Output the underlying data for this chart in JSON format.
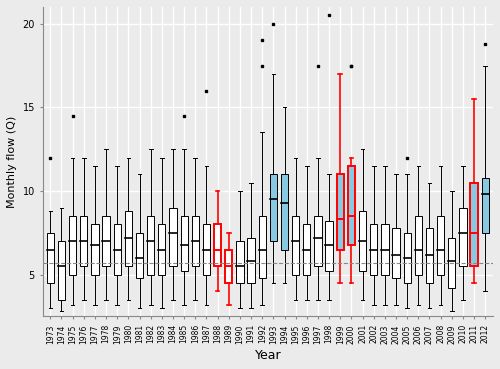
{
  "years": [
    1973,
    1974,
    1975,
    1976,
    1977,
    1978,
    1979,
    1980,
    1981,
    1982,
    1983,
    1984,
    1985,
    1986,
    1987,
    1988,
    1989,
    1990,
    1991,
    1992,
    1993,
    1994,
    1995,
    1996,
    1997,
    1998,
    1999,
    2000,
    2001,
    2002,
    2003,
    2004,
    2005,
    2006,
    2007,
    2008,
    2009,
    2010,
    2011,
    2012
  ],
  "red_years": [
    1988,
    1989,
    1999,
    2000,
    2011
  ],
  "blue_years": [
    1993,
    1994,
    1999,
    2000,
    2011,
    2012
  ],
  "mean_flow": 5.7,
  "ylabel": "Monthly flow (Q)",
  "xlabel": "Year",
  "bg_color": "#EBEBEB",
  "grid_color": "#FFFFFF",
  "box_color_normal": "#FFFFFF",
  "box_color_blue": "#88C8E0",
  "box_edge_red": "#FF0000",
  "box_edge_normal": "#000000",
  "median_color": "#000000",
  "whisker_color": "#000000",
  "flier_color": "#000000",
  "dashed_line_color": "#888888",
  "ylim": [
    2.5,
    21.0
  ],
  "yticks": [
    5,
    10,
    15,
    20
  ],
  "box_stats": {
    "1973": {
      "q1": 4.5,
      "med": 6.5,
      "q3": 7.5,
      "wlo": 3.0,
      "whi": 8.8,
      "fliers": [
        12.0
      ]
    },
    "1974": {
      "q1": 3.5,
      "med": 5.5,
      "q3": 7.0,
      "wlo": 2.8,
      "whi": 9.0,
      "fliers": []
    },
    "1975": {
      "q1": 5.0,
      "med": 7.0,
      "q3": 8.5,
      "wlo": 3.2,
      "whi": 12.0,
      "fliers": [
        14.5
      ]
    },
    "1976": {
      "q1": 5.5,
      "med": 7.0,
      "q3": 8.5,
      "wlo": 3.5,
      "whi": 12.0,
      "fliers": []
    },
    "1977": {
      "q1": 5.0,
      "med": 6.8,
      "q3": 8.0,
      "wlo": 3.2,
      "whi": 11.5,
      "fliers": []
    },
    "1978": {
      "q1": 5.5,
      "med": 7.0,
      "q3": 8.5,
      "wlo": 3.5,
      "whi": 12.5,
      "fliers": []
    },
    "1979": {
      "q1": 5.0,
      "med": 6.5,
      "q3": 8.0,
      "wlo": 3.2,
      "whi": 11.5,
      "fliers": []
    },
    "1980": {
      "q1": 5.5,
      "med": 7.2,
      "q3": 8.8,
      "wlo": 3.5,
      "whi": 12.0,
      "fliers": []
    },
    "1981": {
      "q1": 4.8,
      "med": 6.0,
      "q3": 7.5,
      "wlo": 3.0,
      "whi": 11.0,
      "fliers": []
    },
    "1982": {
      "q1": 5.0,
      "med": 7.0,
      "q3": 8.5,
      "wlo": 3.2,
      "whi": 12.5,
      "fliers": []
    },
    "1983": {
      "q1": 5.0,
      "med": 6.5,
      "q3": 8.0,
      "wlo": 3.0,
      "whi": 12.0,
      "fliers": []
    },
    "1984": {
      "q1": 5.5,
      "med": 7.5,
      "q3": 9.0,
      "wlo": 3.5,
      "whi": 12.5,
      "fliers": []
    },
    "1985": {
      "q1": 5.2,
      "med": 6.8,
      "q3": 8.5,
      "wlo": 3.2,
      "whi": 12.5,
      "fliers": [
        14.5
      ]
    },
    "1986": {
      "q1": 5.5,
      "med": 7.0,
      "q3": 8.5,
      "wlo": 3.5,
      "whi": 12.0,
      "fliers": []
    },
    "1987": {
      "q1": 5.0,
      "med": 6.5,
      "q3": 8.0,
      "wlo": 3.2,
      "whi": 11.5,
      "fliers": [
        16.0
      ]
    },
    "1988": {
      "q1": 5.5,
      "med": 6.5,
      "q3": 8.0,
      "wlo": 4.0,
      "whi": 10.0,
      "fliers": []
    },
    "1989": {
      "q1": 4.5,
      "med": 5.5,
      "q3": 6.5,
      "wlo": 3.2,
      "whi": 7.5,
      "fliers": []
    },
    "1990": {
      "q1": 4.5,
      "med": 5.5,
      "q3": 7.0,
      "wlo": 3.0,
      "whi": 10.0,
      "fliers": []
    },
    "1991": {
      "q1": 4.5,
      "med": 5.8,
      "q3": 7.2,
      "wlo": 3.0,
      "whi": 10.5,
      "fliers": []
    },
    "1992": {
      "q1": 4.8,
      "med": 6.5,
      "q3": 8.5,
      "wlo": 3.2,
      "whi": 13.5,
      "fliers": [
        17.5,
        19.0
      ]
    },
    "1993": {
      "q1": 7.0,
      "med": 9.5,
      "q3": 11.0,
      "wlo": 4.5,
      "whi": 17.0,
      "fliers": [
        20.0
      ]
    },
    "1994": {
      "q1": 6.5,
      "med": 9.3,
      "q3": 11.0,
      "wlo": 4.5,
      "whi": 15.0,
      "fliers": []
    },
    "1995": {
      "q1": 5.0,
      "med": 7.0,
      "q3": 8.5,
      "wlo": 3.5,
      "whi": 12.0,
      "fliers": []
    },
    "1996": {
      "q1": 5.0,
      "med": 6.5,
      "q3": 8.0,
      "wlo": 3.5,
      "whi": 11.5,
      "fliers": []
    },
    "1997": {
      "q1": 5.5,
      "med": 7.2,
      "q3": 8.5,
      "wlo": 3.5,
      "whi": 12.0,
      "fliers": [
        17.5
      ]
    },
    "1998": {
      "q1": 5.2,
      "med": 6.8,
      "q3": 8.2,
      "wlo": 3.5,
      "whi": 11.0,
      "fliers": [
        20.5
      ]
    },
    "1999": {
      "q1": 6.5,
      "med": 8.3,
      "q3": 11.0,
      "wlo": 4.5,
      "whi": 17.0,
      "fliers": []
    },
    "2000": {
      "q1": 6.8,
      "med": 8.5,
      "q3": 11.5,
      "wlo": 4.5,
      "whi": 12.0,
      "fliers": [
        17.5,
        17.5
      ]
    },
    "2001": {
      "q1": 5.2,
      "med": 7.0,
      "q3": 8.8,
      "wlo": 3.5,
      "whi": 12.5,
      "fliers": []
    },
    "2002": {
      "q1": 5.0,
      "med": 6.5,
      "q3": 8.0,
      "wlo": 3.2,
      "whi": 11.5,
      "fliers": []
    },
    "2003": {
      "q1": 5.0,
      "med": 6.5,
      "q3": 8.0,
      "wlo": 3.2,
      "whi": 11.5,
      "fliers": []
    },
    "2004": {
      "q1": 4.8,
      "med": 6.2,
      "q3": 7.8,
      "wlo": 3.2,
      "whi": 11.0,
      "fliers": []
    },
    "2005": {
      "q1": 4.5,
      "med": 6.0,
      "q3": 7.5,
      "wlo": 3.0,
      "whi": 11.0,
      "fliers": [
        12.0
      ]
    },
    "2006": {
      "q1": 5.0,
      "med": 6.5,
      "q3": 8.5,
      "wlo": 3.2,
      "whi": 11.5,
      "fliers": []
    },
    "2007": {
      "q1": 4.5,
      "med": 6.2,
      "q3": 7.8,
      "wlo": 3.0,
      "whi": 10.5,
      "fliers": []
    },
    "2008": {
      "q1": 5.0,
      "med": 6.5,
      "q3": 8.5,
      "wlo": 3.2,
      "whi": 11.5,
      "fliers": []
    },
    "2009": {
      "q1": 4.2,
      "med": 5.8,
      "q3": 7.2,
      "wlo": 2.8,
      "whi": 10.0,
      "fliers": []
    },
    "2010": {
      "q1": 5.5,
      "med": 7.5,
      "q3": 9.0,
      "wlo": 3.5,
      "whi": 11.5,
      "fliers": []
    },
    "2011": {
      "q1": 5.5,
      "med": 7.5,
      "q3": 10.5,
      "wlo": 4.5,
      "whi": 15.5,
      "fliers": []
    },
    "2012": {
      "q1": 7.5,
      "med": 9.8,
      "q3": 10.8,
      "wlo": 4.0,
      "whi": 17.5,
      "fliers": [
        18.8
      ]
    }
  }
}
